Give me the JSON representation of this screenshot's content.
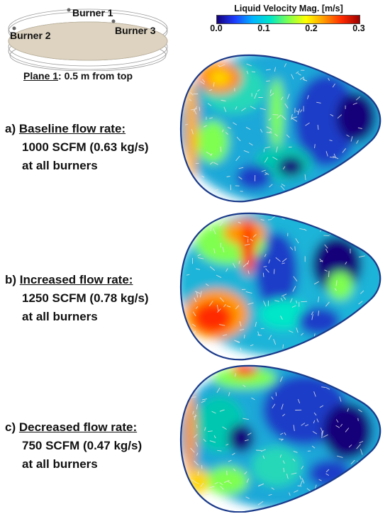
{
  "colorbar": {
    "title": "Liquid Velocity Mag. [m/s]",
    "ticks": [
      "0.0",
      "0.1",
      "0.2",
      "0.3"
    ],
    "tick_values": [
      0.0,
      0.1,
      0.2,
      0.3
    ],
    "range": [
      0.0,
      0.3
    ],
    "colormap": [
      "#14007a",
      "#1e3cff",
      "#00b4ff",
      "#00e6c8",
      "#7fff4f",
      "#ffff00",
      "#ff9a00",
      "#ff2a00",
      "#9e0000"
    ]
  },
  "overview": {
    "burners": [
      "Burner 1",
      "Burner 2",
      "Burner 3"
    ],
    "plane_label": "Plane 1",
    "plane_suffix": ": 0.5 m from top",
    "tank_color": "#ddd3c0"
  },
  "panels": [
    {
      "letter": "a)",
      "heading": "Baseline flow rate:",
      "rate": "1000 SCFM (0.63 kg/s)",
      "where": "at all burners"
    },
    {
      "letter": "b)",
      "heading": "Increased flow rate:",
      "rate": "1250 SCFM (0.78 kg/s)",
      "where": "at all burners"
    },
    {
      "letter": "c)",
      "heading": "Decreased flow rate:",
      "rate": "750 SCFM (0.47 kg/s)",
      "where": "at all burners"
    }
  ]
}
